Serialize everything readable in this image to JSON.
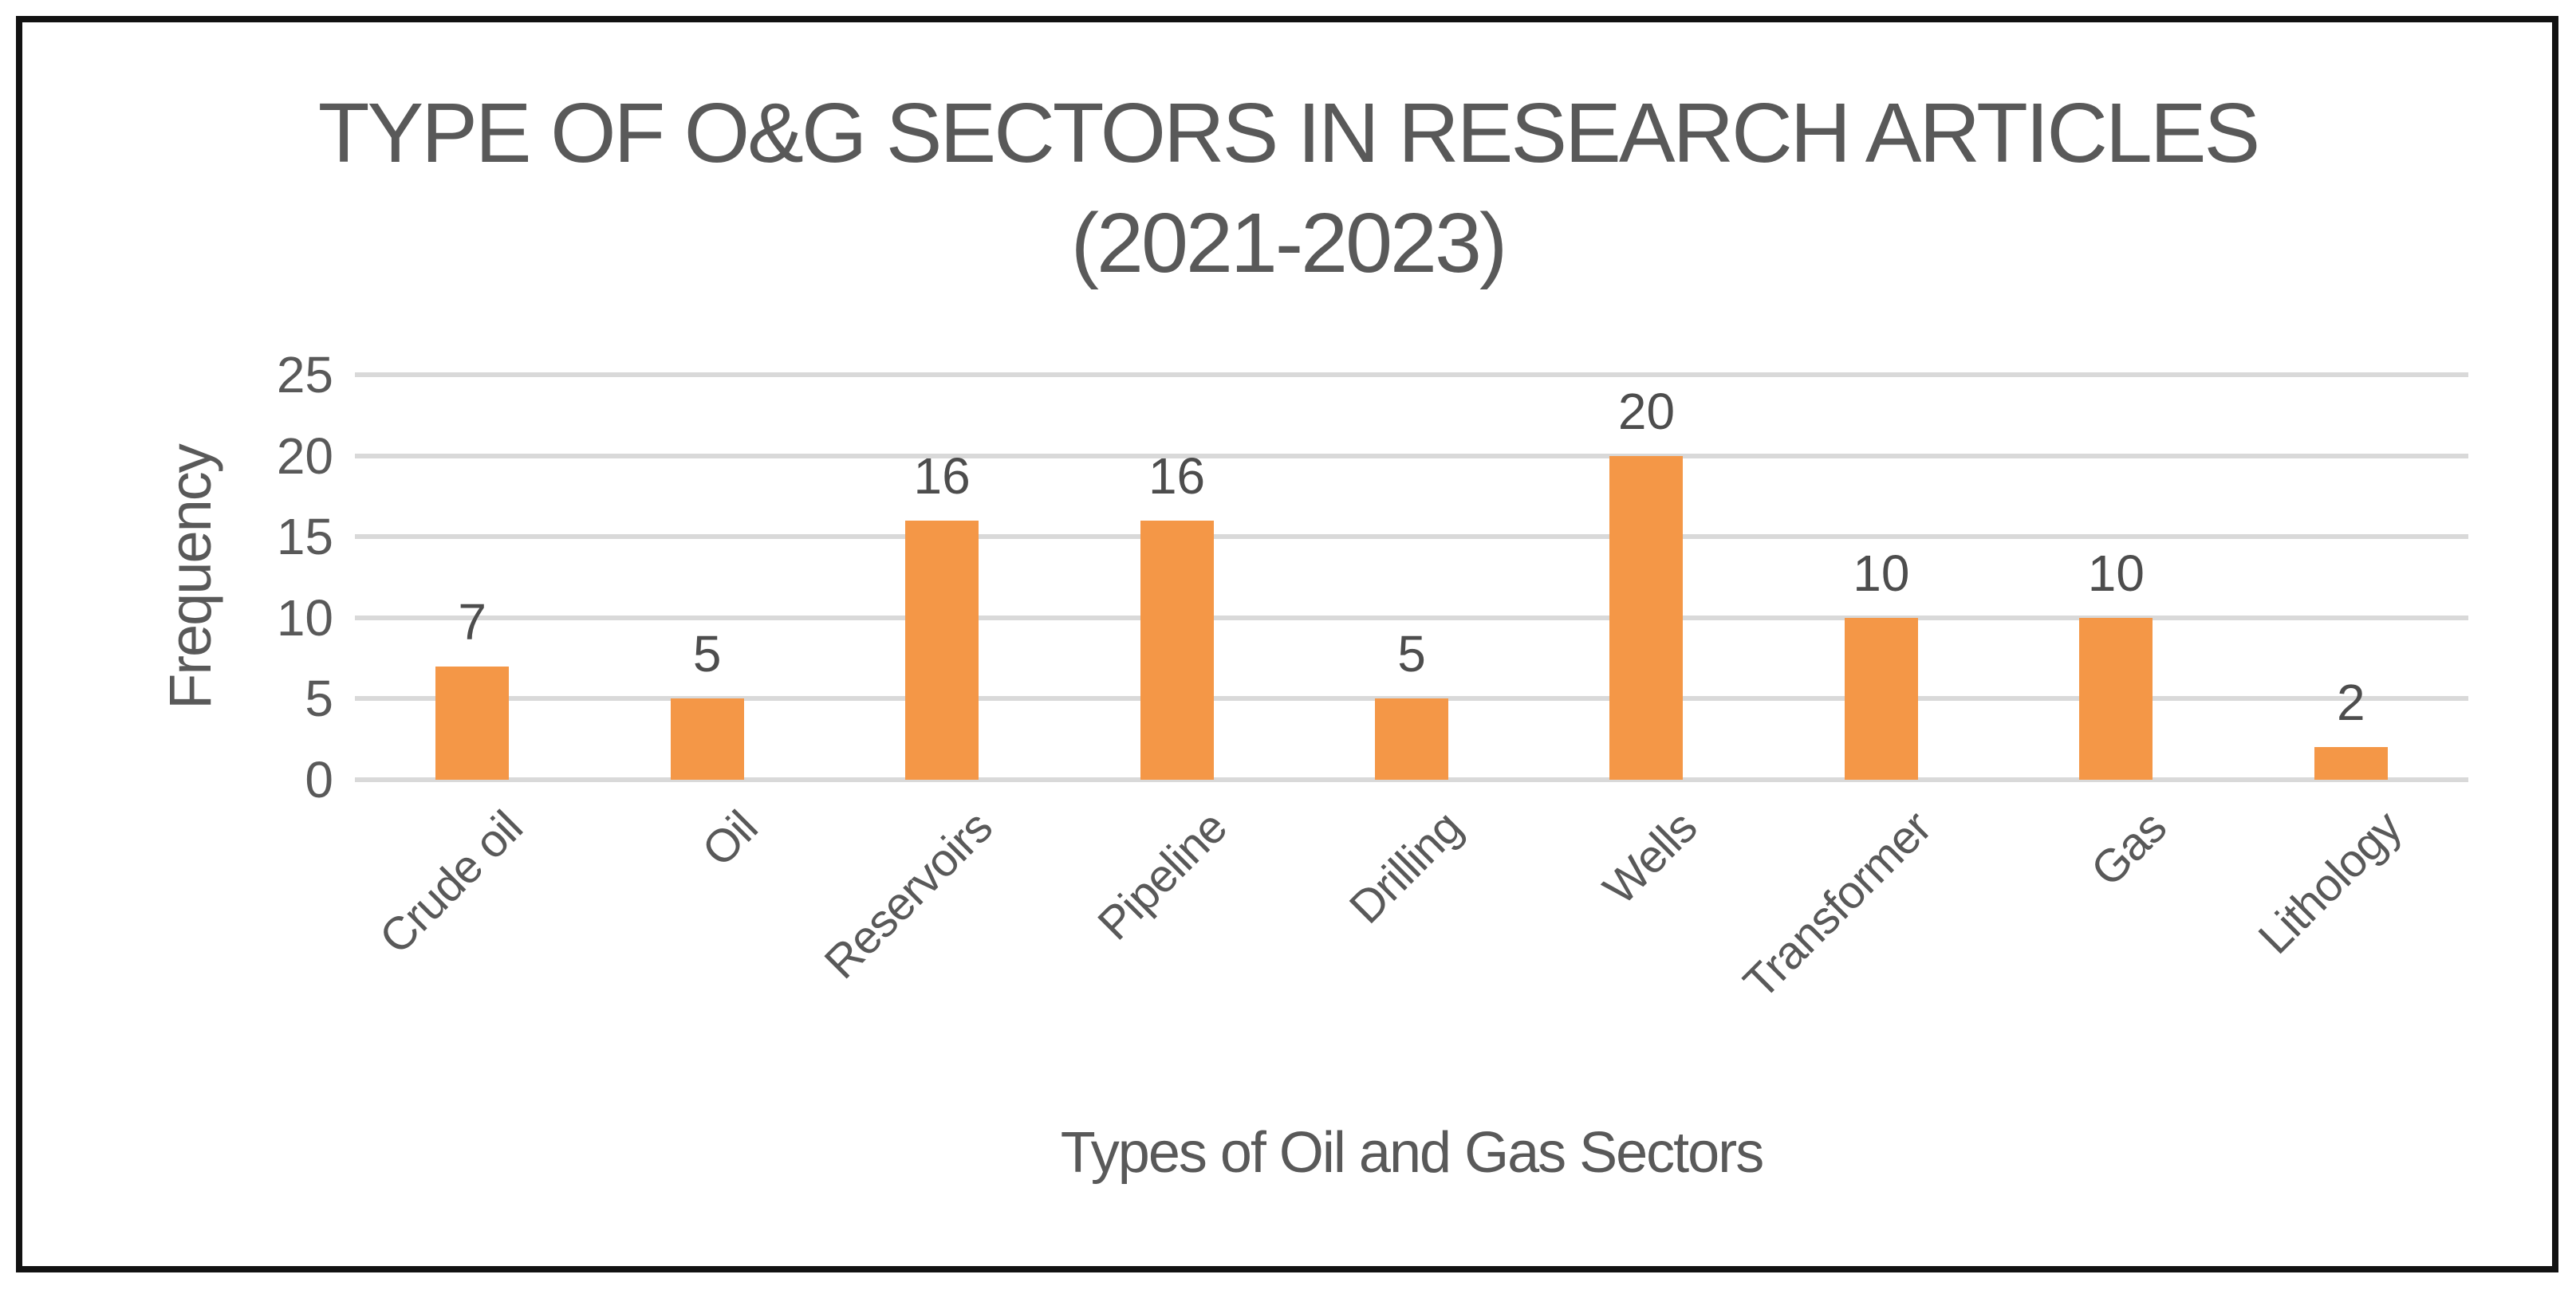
{
  "chart_data": {
    "type": "bar",
    "title_line1": "TYPE OF O&G SECTORS IN RESEARCH ARTICLES",
    "title_line2": "(2021-2023)",
    "categories": [
      "Crude oil",
      "Oil",
      "Reservoirs",
      "Pipeline",
      "Drilling",
      "Wells",
      "Transformer",
      "Gas",
      "Lithology"
    ],
    "values": [
      7,
      5,
      16,
      16,
      5,
      20,
      10,
      10,
      2
    ],
    "xlabel": "Types of Oil and Gas Sectors",
    "ylabel": "Frequency",
    "ylim": [
      0,
      25
    ],
    "ytick_step": 5,
    "yticks": [
      0,
      5,
      10,
      15,
      20,
      25
    ],
    "grid": true,
    "legend": "none",
    "bar_color": "#F49747",
    "gridline_color": "#D9D9D9",
    "text_color": "#595959",
    "frame_border_color": "#121212"
  }
}
